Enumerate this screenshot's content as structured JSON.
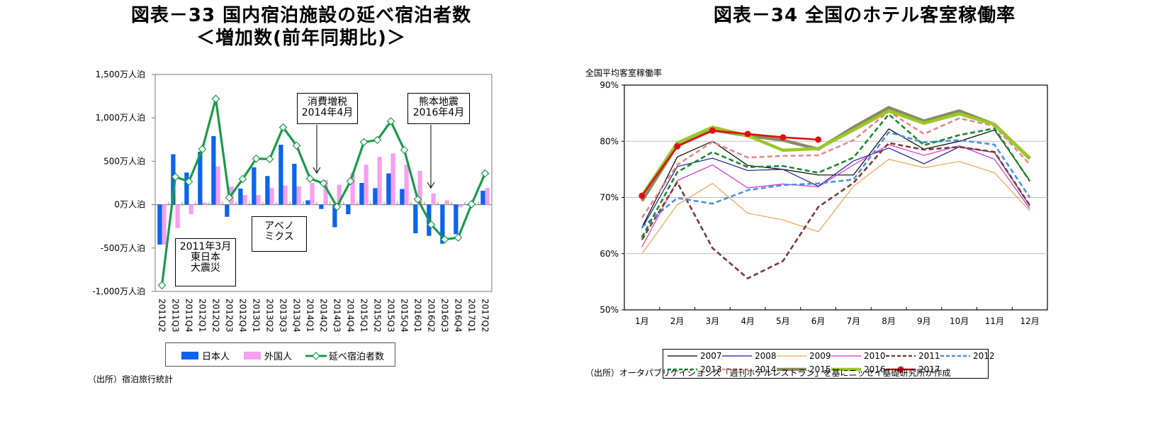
{
  "figure33": {
    "title_line1": "図表－33  国内宿泊施設の延べ宿泊者数",
    "title_line2": "＜増加数(前年同期比)＞",
    "source": "（出所）宿泊旅行統計",
    "annotations": [
      {
        "text_lines": [
          "2011年3月",
          "東日本",
          "大震災"
        ]
      },
      {
        "text_lines": [
          "アベノ",
          "ミクス"
        ]
      },
      {
        "text_lines": [
          "消費増税",
          "2014年4月"
        ]
      },
      {
        "text_lines": [
          "熊本地震",
          "2016年4月"
        ]
      }
    ],
    "colors": {
      "japanese": "#0a64ef",
      "foreign": "#f5a0f0",
      "total": "#1a9a4a"
    }
  },
  "figure34": {
    "title": "図表－34  全国のホテル客室稼働率",
    "ylabel": "全国平均客室稼働率",
    "source": "（出所）オータパブリケイションズ「週刊ホテルレストラン」を基にニッセイ基礎研究所が作成"
  },
  "chart_data": [
    {
      "type": "bar",
      "title": "図表－33  国内宿泊施設の延べ宿泊者数 ＜増加数(前年同期比)＞",
      "xlabel": "",
      "ylabel": "",
      "ylim": [
        -1000,
        1500
      ],
      "yticks": [
        1500,
        1000,
        500,
        0,
        -500,
        -1000
      ],
      "ytick_labels": [
        "1,500万人泊",
        "1,000万人泊",
        "500万人泊",
        "0万人泊",
        "-500万人泊",
        "-1,000万人泊"
      ],
      "grid": false,
      "legend_position": "bottom",
      "categories": [
        "2011Q2",
        "2011Q3",
        "2011Q4",
        "2012Q1",
        "2012Q2",
        "2012Q3",
        "2012Q4",
        "2013Q1",
        "2013Q2",
        "2013Q3",
        "2013Q4",
        "2014Q1",
        "2014Q2",
        "2014Q3",
        "2014Q4",
        "2015Q1",
        "2015Q2",
        "2015Q3",
        "2015Q4",
        "2016Q1",
        "2016Q2",
        "2016Q3",
        "2016Q4",
        "2017Q1",
        "2017Q2"
      ],
      "series": [
        {
          "name": "日本人",
          "kind": "bar",
          "values": [
            -460,
            580,
            370,
            610,
            790,
            -140,
            185,
            430,
            330,
            690,
            470,
            50,
            -50,
            -260,
            -110,
            250,
            190,
            360,
            180,
            -330,
            -360,
            -450,
            -340,
            -10,
            160
          ]
        },
        {
          "name": "外国人",
          "kind": "bar",
          "values": [
            -460,
            -270,
            -110,
            25,
            440,
            210,
            110,
            110,
            190,
            220,
            210,
            250,
            285,
            230,
            370,
            460,
            550,
            590,
            460,
            390,
            130,
            50,
            -30,
            5,
            195
          ]
        },
        {
          "name": "延べ宿泊者数",
          "kind": "line",
          "values": [
            -930,
            320,
            265,
            640,
            1220,
            80,
            295,
            530,
            525,
            890,
            680,
            300,
            245,
            -25,
            270,
            720,
            745,
            960,
            630,
            60,
            -230,
            -400,
            -380,
            5,
            360
          ]
        }
      ]
    },
    {
      "type": "line",
      "title": "図表－34  全国のホテル客室稼働率",
      "xlabel": "",
      "ylabel": "全国平均客室稼働率",
      "ylim": [
        50,
        90
      ],
      "yticks": [
        90,
        80,
        70,
        60,
        50
      ],
      "ytick_labels": [
        "90%",
        "80%",
        "70%",
        "60%",
        "50%"
      ],
      "grid": true,
      "legend_position": "bottom",
      "categories": [
        "1月",
        "2月",
        "3月",
        "4月",
        "5月",
        "6月",
        "7月",
        "8月",
        "9月",
        "10月",
        "11月",
        "12月"
      ],
      "series": [
        {
          "name": "2007",
          "color": "#000000",
          "style": "solid-thin",
          "values": [
            64.7,
            77.2,
            80.0,
            75.7,
            75.0,
            74.0,
            74.0,
            82.2,
            78.6,
            80.0,
            82.0,
            73.0
          ]
        },
        {
          "name": "2008",
          "color": "#1a1a8c",
          "style": "solid-thin",
          "values": [
            64.5,
            75.5,
            77.0,
            74.8,
            75.0,
            72.0,
            76.5,
            78.8,
            76.0,
            79.0,
            78.0,
            68.5
          ]
        },
        {
          "name": "2009",
          "color": "#f0a050",
          "style": "solid-thin",
          "values": [
            60.0,
            68.7,
            72.5,
            67.2,
            66.0,
            63.9,
            72.0,
            76.8,
            75.3,
            76.4,
            74.4,
            67.6
          ]
        },
        {
          "name": "2010",
          "color": "#d030d0",
          "style": "solid-thin",
          "values": [
            61.2,
            73.0,
            75.8,
            71.7,
            72.4,
            71.9,
            75.8,
            79.4,
            77.5,
            79.2,
            76.8,
            68.0
          ]
        },
        {
          "name": "2011",
          "color": "#7a3a3a",
          "style": "dashed",
          "values": [
            62.5,
            72.7,
            61.0,
            55.6,
            58.7,
            68.3,
            72.6,
            79.7,
            78.5,
            79.0,
            78.1,
            68.6
          ]
        },
        {
          "name": "2012",
          "color": "#4a90e0",
          "style": "dashed",
          "values": [
            64.7,
            69.9,
            68.9,
            71.3,
            72.2,
            72.5,
            73.2,
            81.6,
            79.8,
            80.2,
            79.4,
            70.0
          ]
        },
        {
          "name": "2013",
          "color": "#1a8a2a",
          "style": "dashed",
          "values": [
            62.9,
            74.5,
            78.1,
            75.4,
            75.6,
            74.4,
            77.1,
            84.8,
            79.3,
            81.1,
            82.3,
            72.9
          ]
        },
        {
          "name": "2014",
          "color": "#e88888",
          "style": "dashed",
          "values": [
            66.4,
            75.8,
            79.9,
            77.1,
            77.4,
            77.5,
            80.2,
            85.3,
            81.3,
            84.1,
            82.7,
            75.9
          ]
        },
        {
          "name": "2015",
          "color": "#8a8a60",
          "style": "solid-thick",
          "values": [
            69.4,
            79.3,
            82.0,
            81.0,
            80.2,
            78.6,
            82.5,
            86.0,
            83.6,
            85.4,
            83.0,
            76.9
          ]
        },
        {
          "name": "2016",
          "color": "#9ac82a",
          "style": "solid-thick",
          "values": [
            70.3,
            79.7,
            82.5,
            81.0,
            78.4,
            78.7,
            82.0,
            85.4,
            83.2,
            84.9,
            83.0,
            77.0
          ]
        },
        {
          "name": "2017",
          "color": "#e01010",
          "style": "solid-marker",
          "values": [
            70.3,
            79.1,
            81.9,
            81.3,
            80.7,
            80.3,
            null,
            null,
            null,
            null,
            null,
            null
          ]
        }
      ]
    }
  ]
}
